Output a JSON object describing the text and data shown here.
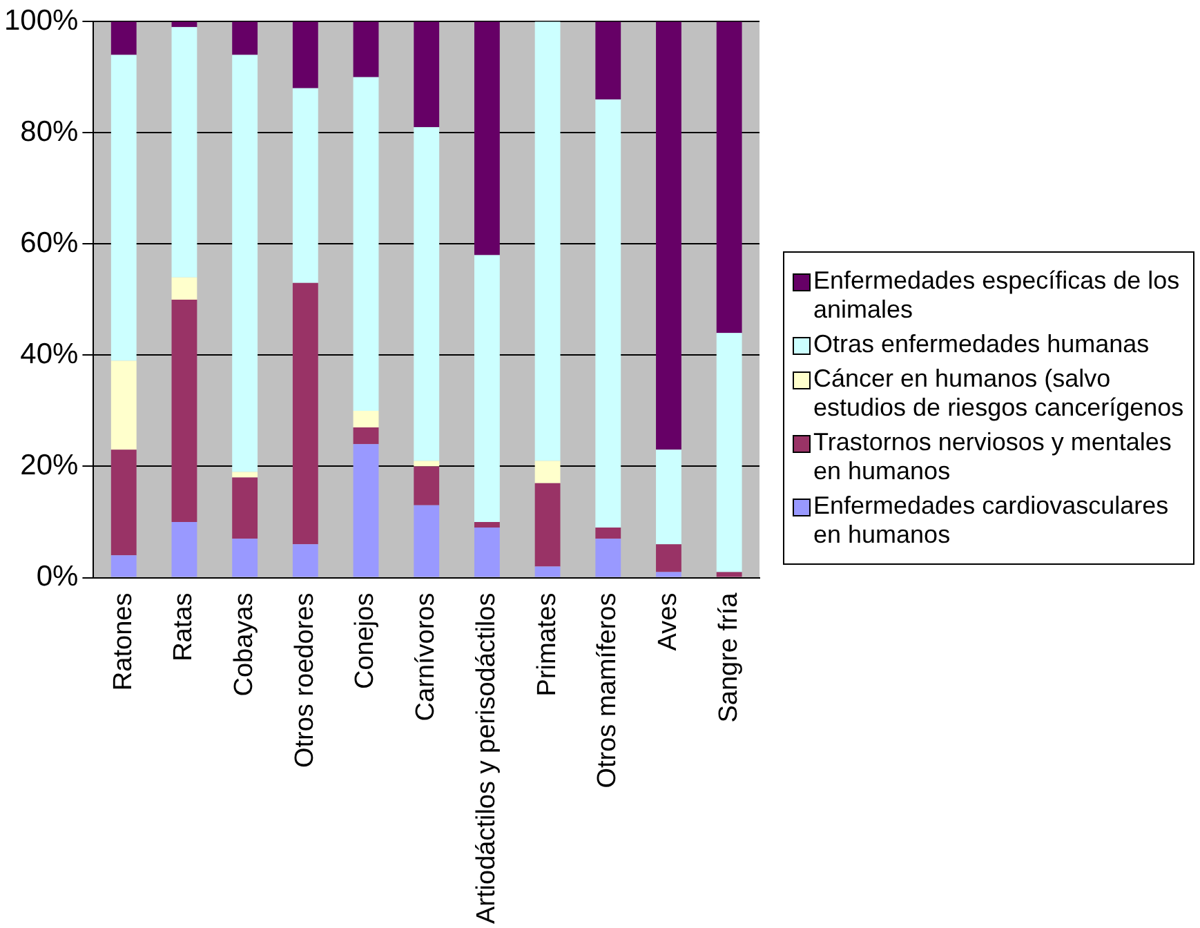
{
  "chart_data": {
    "type": "bar",
    "stacked": true,
    "categories": [
      "Ratones",
      "Ratas",
      "Cobayas",
      "Otros roedores",
      "Conejos",
      "Carnívoros",
      "Artiodáctilos y perisodáctilos",
      "Primates",
      "Otros mamíferos",
      "Aves",
      "Sangre fría"
    ],
    "series": [
      {
        "name": "Enfermedades cardiovasculares en humanos",
        "color": "#9999ff",
        "values": [
          4,
          10,
          7,
          6,
          24,
          13,
          9,
          2,
          7,
          1,
          0
        ]
      },
      {
        "name": "Trastornos nerviosos y mentales en humanos",
        "color": "#993366",
        "values": [
          19,
          40,
          11,
          47,
          3,
          7,
          1,
          15,
          2,
          5,
          1
        ]
      },
      {
        "name": "Cáncer en humanos (salvo estudios de riesgos cancerígenos",
        "color": "#ffffcc",
        "values": [
          16,
          4,
          1,
          0,
          3,
          1,
          0,
          4,
          0,
          0,
          0
        ]
      },
      {
        "name": "Otras enfermedades humanas",
        "color": "#ccffff",
        "values": [
          55,
          45,
          75,
          35,
          60,
          60,
          48,
          79,
          77,
          17,
          43
        ]
      },
      {
        "name": "Enfermedades específicas de los animales",
        "color": "#660066",
        "values": [
          6,
          1,
          6,
          12,
          10,
          19,
          42,
          0,
          14,
          77,
          56
        ]
      }
    ],
    "ylim": [
      0,
      100
    ],
    "yticks": [
      {
        "value": 0,
        "label": "0%"
      },
      {
        "value": 20,
        "label": "20%"
      },
      {
        "value": 40,
        "label": "40%"
      },
      {
        "value": 60,
        "label": "60%"
      },
      {
        "value": 80,
        "label": "80%"
      },
      {
        "value": 100,
        "label": "100%"
      }
    ],
    "grid": "y",
    "legend": "right"
  }
}
